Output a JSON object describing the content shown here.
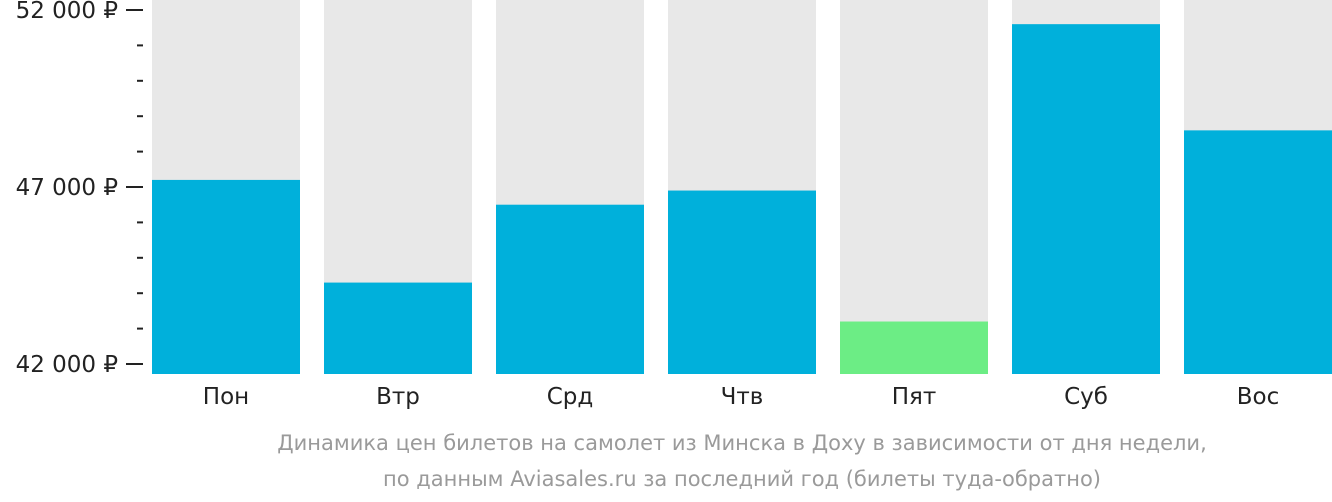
{
  "chart_data": {
    "type": "bar",
    "categories": [
      "Пон",
      "Втр",
      "Срд",
      "Чтв",
      "Пят",
      "Суб",
      "Вос"
    ],
    "values": [
      47200,
      44300,
      46500,
      46900,
      43200,
      51600,
      48600
    ],
    "ylim": [
      42000,
      52000
    ],
    "yticks": [
      {
        "value": 52000,
        "label": "52 000 ₽"
      },
      {
        "value": 47000,
        "label": "47 000 ₽"
      },
      {
        "value": 42000,
        "label": "42 000 ₽"
      }
    ],
    "minor_tick_step": 1000,
    "highlight_index": 4,
    "colors": {
      "bar": "#00b0db",
      "highlight": "#6ced85",
      "track": "#e8e8e8",
      "axis_text": "#222222",
      "caption": "#9a9a9a"
    }
  },
  "caption": {
    "line1": "Динамика цен билетов на самолет из Минска в Доху в зависимости от дня недели,",
    "line2": "по данным Aviasales.ru за последний год (билеты туда-обратно)"
  }
}
